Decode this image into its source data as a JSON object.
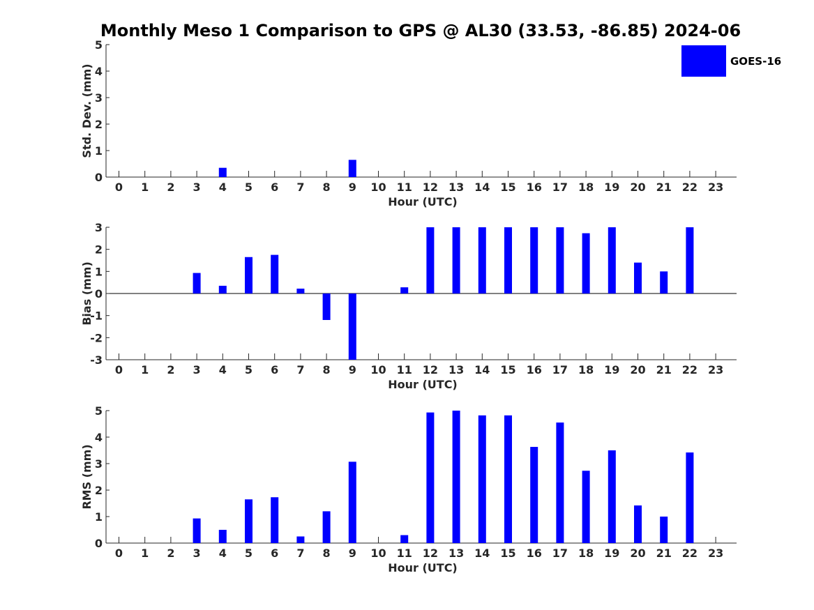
{
  "title": "Monthly Meso 1 Comparison to GPS @ AL30 (33.53, -86.85) 2024-06",
  "legend": {
    "label": "GOES-16",
    "color": "#0000ff",
    "placement": "top-right"
  },
  "chart_data": [
    {
      "type": "bar",
      "categories": [
        "0",
        "1",
        "2",
        "3",
        "4",
        "5",
        "6",
        "7",
        "8",
        "9",
        "10",
        "11",
        "12",
        "13",
        "14",
        "15",
        "16",
        "17",
        "18",
        "19",
        "20",
        "21",
        "22",
        "23"
      ],
      "series": [
        {
          "name": "GOES-16",
          "values": [
            0,
            0,
            0,
            0,
            0.35,
            0,
            0,
            0,
            0,
            0.65,
            0,
            0,
            0,
            0,
            0,
            0,
            0,
            0,
            0,
            0,
            0,
            0,
            0,
            0
          ]
        }
      ],
      "xlabel": "Hour (UTC)",
      "ylabel": "Std. Dev. (mm)",
      "ylim": [
        0,
        5
      ],
      "yticks": [
        "0",
        "1",
        "2",
        "3",
        "4",
        "5"
      ],
      "grid": false
    },
    {
      "type": "bar",
      "categories": [
        "0",
        "1",
        "2",
        "3",
        "4",
        "5",
        "6",
        "7",
        "8",
        "9",
        "10",
        "11",
        "12",
        "13",
        "14",
        "15",
        "16",
        "17",
        "18",
        "19",
        "20",
        "21",
        "22",
        "23"
      ],
      "series": [
        {
          "name": "GOES-16",
          "values": [
            0,
            0,
            0,
            0.93,
            0.35,
            1.65,
            1.75,
            0.22,
            -1.2,
            -3,
            0,
            0.28,
            3,
            3,
            3,
            3,
            3,
            3,
            2.73,
            3,
            1.4,
            1,
            3,
            0
          ]
        }
      ],
      "xlabel": "Hour (UTC)",
      "ylabel": "Bias (mm)",
      "ylim": [
        -3,
        3
      ],
      "yticks": [
        "-3",
        "-2",
        "-1",
        "0",
        "1",
        "2",
        "3"
      ],
      "grid": false
    },
    {
      "type": "bar",
      "categories": [
        "0",
        "1",
        "2",
        "3",
        "4",
        "5",
        "6",
        "7",
        "8",
        "9",
        "10",
        "11",
        "12",
        "13",
        "14",
        "15",
        "16",
        "17",
        "18",
        "19",
        "20",
        "21",
        "22",
        "23"
      ],
      "series": [
        {
          "name": "GOES-16",
          "values": [
            0,
            0,
            0,
            0.93,
            0.5,
            1.65,
            1.73,
            0.25,
            1.2,
            3.07,
            0,
            0.3,
            4.93,
            5,
            4.82,
            4.82,
            3.63,
            4.55,
            2.73,
            3.5,
            1.42,
            1,
            3.42,
            0
          ]
        }
      ],
      "xlabel": "Hour (UTC)",
      "ylabel": "RMS (mm)",
      "ylim": [
        0,
        5
      ],
      "yticks": [
        "0",
        "1",
        "2",
        "3",
        "4",
        "5"
      ],
      "grid": false
    }
  ]
}
